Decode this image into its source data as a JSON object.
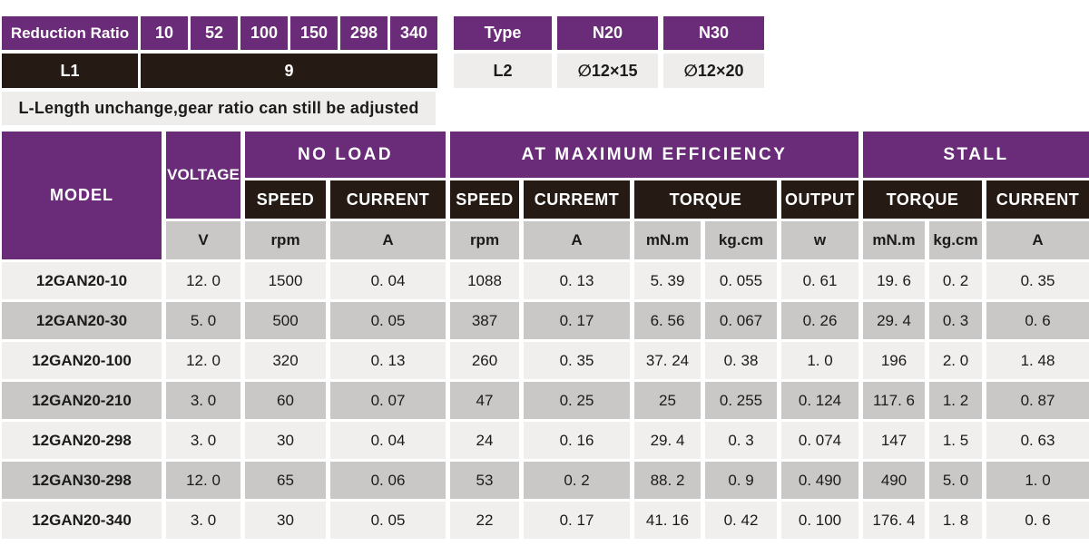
{
  "colors": {
    "purple": "#6a2b79",
    "dark": "#251a14",
    "gray_shade": "#c9c8c6",
    "gray_light": "#f0efed",
    "note_bg": "#eeedeb"
  },
  "reduction_table": {
    "header_label": "Reduction Ratio",
    "ratios": [
      "10",
      "52",
      "100",
      "150",
      "298",
      "340"
    ],
    "l1_label": "L1",
    "l1_value": "9"
  },
  "note": "L-Length unchange,gear ratio can still be adjusted",
  "type_table": {
    "header": [
      "Type",
      "N20",
      "N30"
    ],
    "row": [
      "L2",
      "∅12×15",
      "∅12×20"
    ]
  },
  "spec_table": {
    "model_header": "MODEL",
    "voltage_header": "VOLTAGE",
    "groups": {
      "no_load": "NO LOAD",
      "max_efficiency": "AT MAXIMUM EFFICIENCY",
      "stall": "STALL"
    },
    "subheaders": {
      "noload_speed": "SPEED",
      "noload_current": "CURRENT",
      "eff_speed": "SPEED",
      "eff_current": "CURREMT",
      "eff_torque": "TORQUE",
      "eff_output": "OUTPUT",
      "stall_torque": "TORQUE",
      "stall_current": "CURRENT"
    },
    "units": [
      "V",
      "rpm",
      "A",
      "rpm",
      "A",
      "mN.m",
      "kg.cm",
      "w",
      "mN.m",
      "kg.cm",
      "A"
    ],
    "rows": [
      {
        "model": "12GAN20-10",
        "values": [
          "12. 0",
          "1500",
          "0. 04",
          "1088",
          "0. 13",
          "5. 39",
          "0. 055",
          "0. 61",
          "19. 6",
          "0. 2",
          "0. 35"
        ]
      },
      {
        "model": "12GAN20-30",
        "values": [
          "5. 0",
          "500",
          "0. 05",
          "387",
          "0. 17",
          "6. 56",
          "0. 067",
          "0. 26",
          "29. 4",
          "0. 3",
          "0. 6"
        ]
      },
      {
        "model": "12GAN20-100",
        "values": [
          "12. 0",
          "320",
          "0. 13",
          "260",
          "0. 35",
          "37. 24",
          "0. 38",
          "1. 0",
          "196",
          "2. 0",
          "1. 48"
        ]
      },
      {
        "model": "12GAN20-210",
        "values": [
          "3. 0",
          "60",
          "0. 07",
          "47",
          "0. 25",
          "25",
          "0. 255",
          "0. 124",
          "117. 6",
          "1. 2",
          "0. 87"
        ]
      },
      {
        "model": "12GAN20-298",
        "values": [
          "3. 0",
          "30",
          "0. 04",
          "24",
          "0. 16",
          "29. 4",
          "0. 3",
          "0. 074",
          "147",
          "1. 5",
          "0. 63"
        ]
      },
      {
        "model": "12GAN30-298",
        "values": [
          "12. 0",
          "65",
          "0. 06",
          "53",
          "0. 2",
          "88. 2",
          "0. 9",
          "0. 490",
          "490",
          "5. 0",
          "1. 0"
        ]
      },
      {
        "model": "12GAN20-340",
        "values": [
          "3. 0",
          "30",
          "0. 05",
          "22",
          "0. 17",
          "41. 16",
          "0. 42",
          "0. 100",
          "176. 4",
          "1. 8",
          "0. 6"
        ]
      }
    ]
  }
}
